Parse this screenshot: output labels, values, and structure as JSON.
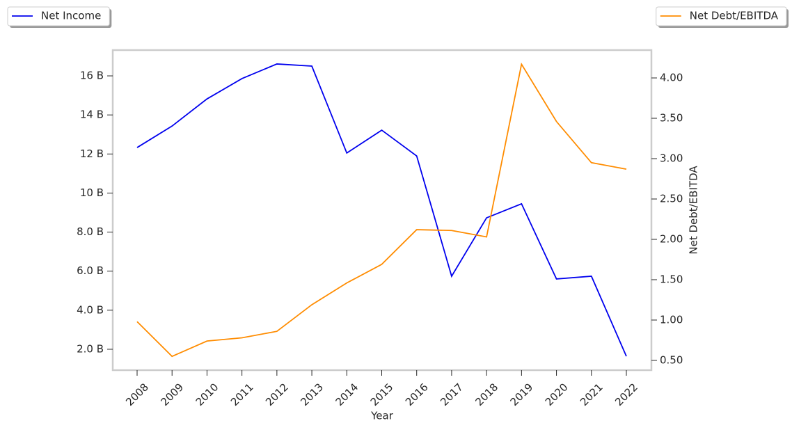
{
  "chart_data": {
    "type": "line",
    "x_label": "Year",
    "y2_label": "Net Debt/EBITDA",
    "categories": [
      "2008",
      "2009",
      "2010",
      "2011",
      "2012",
      "2013",
      "2014",
      "2015",
      "2016",
      "2017",
      "2018",
      "2019",
      "2020",
      "2021",
      "2022"
    ],
    "series": [
      {
        "name": "Net Income",
        "color": "#0000ee",
        "axis": "y",
        "legend": "upper left",
        "values": [
          12.33,
          13.43,
          14.82,
          15.86,
          16.61,
          16.5,
          12.05,
          13.22,
          11.9,
          5.74,
          8.73,
          9.45,
          5.6,
          5.74,
          1.64
        ]
      },
      {
        "name": "Net Debt/EBITDA",
        "color": "#ff8c00",
        "axis": "y2",
        "legend": "upper right",
        "values": [
          0.98,
          0.55,
          0.74,
          0.78,
          0.86,
          1.19,
          1.46,
          1.69,
          2.12,
          2.11,
          2.03,
          4.17,
          3.46,
          2.95,
          2.87
        ]
      }
    ],
    "ylim": [
      0.93,
      17.32
    ],
    "yticks": [
      {
        "value": 2,
        "label": "2.0 B"
      },
      {
        "value": 4,
        "label": "4.0 B"
      },
      {
        "value": 6,
        "label": "6.0 B"
      },
      {
        "value": 8,
        "label": "8.0 B"
      },
      {
        "value": 10,
        "label": "10 B"
      },
      {
        "value": 12,
        "label": "12 B"
      },
      {
        "value": 14,
        "label": "14 B"
      },
      {
        "value": 16,
        "label": "16 B"
      }
    ],
    "y2lim": [
      0.379,
      4.345
    ],
    "y2ticks": [
      {
        "value": 0.5,
        "label": "0.50"
      },
      {
        "value": 1,
        "label": "1.00"
      },
      {
        "value": 1.5,
        "label": "1.50"
      },
      {
        "value": 2,
        "label": "2.00"
      },
      {
        "value": 2.5,
        "label": "2.50"
      },
      {
        "value": 3,
        "label": "3.00"
      },
      {
        "value": 3.5,
        "label": "3.50"
      },
      {
        "value": 4,
        "label": "4.00"
      }
    ],
    "grid": false
  }
}
